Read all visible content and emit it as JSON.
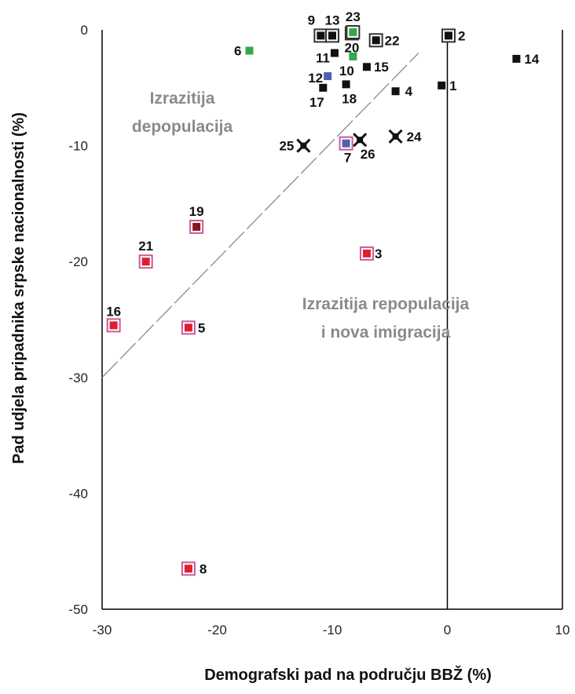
{
  "chart_data": {
    "type": "scatter",
    "title": "",
    "xlabel": "Demografski pad na području BBŽ (%)",
    "ylabel": "Pad udjela pripadnika srpske nacionalnosti (%)",
    "xlim": [
      -30,
      10
    ],
    "ylim": [
      -50,
      0
    ],
    "x_ticks": [
      -30,
      -20,
      -10,
      0,
      10
    ],
    "y_ticks": [
      0,
      -10,
      -20,
      -30,
      -40,
      -50
    ],
    "reference_line": {
      "from": [
        -30,
        -30
      ],
      "to": [
        -2.5,
        -2
      ]
    },
    "regions": [
      {
        "lines": [
          "Izrazitija",
          "depopulacija"
        ]
      },
      {
        "lines": [
          "Izrazitija repopulacija",
          "i nova imigracija"
        ]
      }
    ],
    "colors": {
      "black": "#111111",
      "green": "#33a84a",
      "blue": "#5060b0",
      "red": "#e01f2d",
      "darkred": "#8a1420",
      "outline_dark": "#333333",
      "outline_pink": "#c85a9a",
      "cross": "#111111"
    },
    "points": [
      {
        "label": "1",
        "x": -0.5,
        "y": -4.8,
        "color": "black",
        "outline": null
      },
      {
        "label": "2",
        "x": 0.1,
        "y": -0.5,
        "color": "black",
        "outline": "outline_dark"
      },
      {
        "label": "3",
        "x": -7.0,
        "y": -19.3,
        "color": "red",
        "outline": "outline_pink"
      },
      {
        "label": "4",
        "x": -4.5,
        "y": -5.3,
        "color": "black",
        "outline": null
      },
      {
        "label": "5",
        "x": -22.5,
        "y": -25.7,
        "color": "red",
        "outline": "outline_pink"
      },
      {
        "label": "6",
        "x": -17.2,
        "y": -1.8,
        "color": "green",
        "outline": null
      },
      {
        "label": "7",
        "x": -8.8,
        "y": -9.8,
        "color": "blue",
        "outline": "outline_pink"
      },
      {
        "label": "8",
        "x": -22.5,
        "y": -46.5,
        "color": "red",
        "outline": "outline_pink"
      },
      {
        "label": "9",
        "x": -11.0,
        "y": -0.5,
        "color": "black",
        "outline": "outline_dark"
      },
      {
        "label": "10",
        "x": -8.2,
        "y": -2.3,
        "color": "green",
        "outline": null
      },
      {
        "label": "11",
        "x": -9.8,
        "y": -2.0,
        "color": "black",
        "outline": null
      },
      {
        "label": "12",
        "x": -10.4,
        "y": -4.0,
        "color": "blue",
        "outline": null
      },
      {
        "label": "13",
        "x": -10.0,
        "y": -0.5,
        "color": "black",
        "outline": "outline_dark"
      },
      {
        "label": "14",
        "x": 6.0,
        "y": -2.5,
        "color": "black",
        "outline": null
      },
      {
        "label": "15",
        "x": -7.0,
        "y": -3.2,
        "color": "black",
        "outline": null
      },
      {
        "label": "16",
        "x": -29.0,
        "y": -25.5,
        "color": "red",
        "outline": "outline_pink"
      },
      {
        "label": "17",
        "x": -10.8,
        "y": -5.0,
        "color": "black",
        "outline": null
      },
      {
        "label": "18",
        "x": -8.8,
        "y": -4.7,
        "color": "black",
        "outline": null
      },
      {
        "label": "19",
        "x": -21.8,
        "y": -17.0,
        "color": "darkred",
        "outline": "outline_pink"
      },
      {
        "label": "20",
        "x": -8.3,
        "y": -0.3,
        "color": "green",
        "outline": "outline_dark"
      },
      {
        "label": "21",
        "x": -26.2,
        "y": -20.0,
        "color": "red",
        "outline": "outline_pink"
      },
      {
        "label": "22",
        "x": -6.2,
        "y": -0.9,
        "color": "black",
        "outline": "outline_dark"
      },
      {
        "label": "23",
        "x": -8.2,
        "y": -0.2,
        "color": "green",
        "outline": "outline_dark"
      },
      {
        "label": "24",
        "x": -4.5,
        "y": -9.2,
        "color": "black",
        "outline": null,
        "marker": "cross"
      },
      {
        "label": "25",
        "x": -12.5,
        "y": -10.0,
        "color": "black",
        "outline": null,
        "marker": "cross"
      },
      {
        "label": "26",
        "x": -7.6,
        "y": -9.5,
        "color": "black",
        "outline": null,
        "marker": "cross"
      }
    ]
  }
}
